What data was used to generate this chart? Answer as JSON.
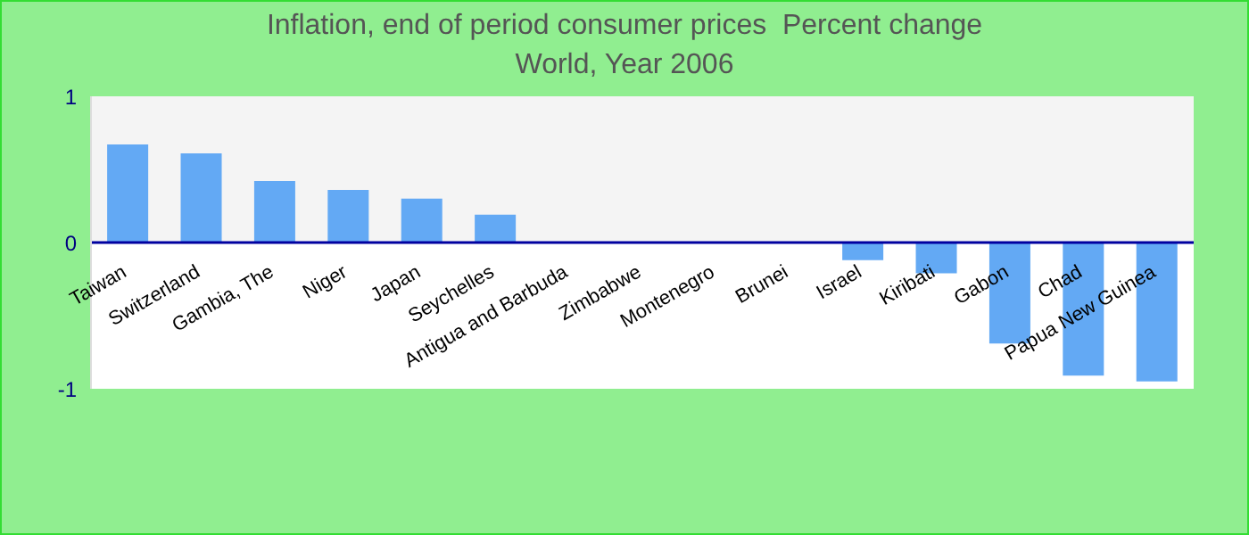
{
  "chart_data": {
    "type": "bar",
    "title": "Inflation, end of period consumer prices  Percent change",
    "subtitle": "World, Year 2006",
    "categories": [
      "Taiwan",
      "Switzerland",
      "Gambia, The",
      "Niger",
      "Japan",
      "Seychelles",
      "Antigua and Barbuda",
      "Zimbabwe",
      "Montenegro",
      "Brunei",
      "Israel",
      "Kiribati",
      "Gabon",
      "Chad",
      "Papua New Guinea"
    ],
    "values": [
      0.67,
      0.61,
      0.42,
      0.36,
      0.3,
      0.19,
      0,
      0,
      0,
      0,
      -0.12,
      -0.21,
      -0.69,
      -0.91,
      -0.95
    ],
    "color": "#63a9f4",
    "ylim": [
      -1,
      1
    ],
    "yticks": [
      -1,
      0,
      1
    ],
    "grid": false,
    "bands": [
      {
        "axis": "y",
        "from": 0,
        "to": 1,
        "color": "#f4f4f4"
      }
    ]
  }
}
